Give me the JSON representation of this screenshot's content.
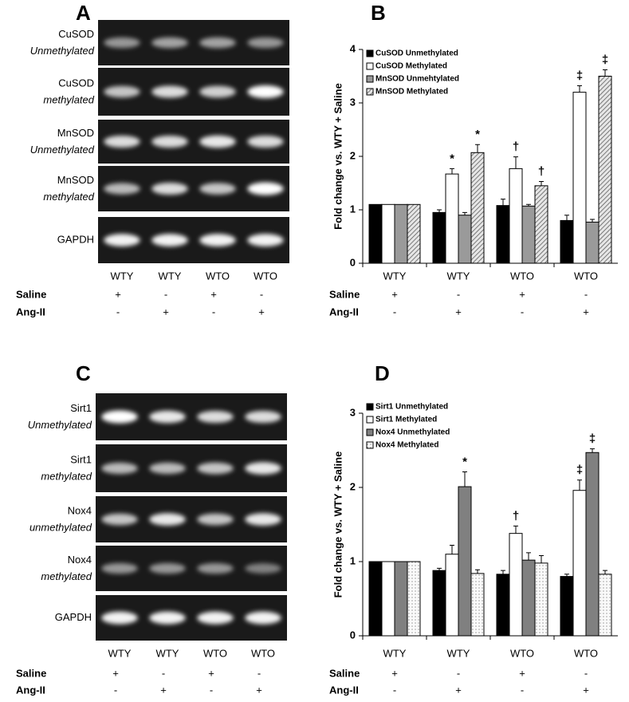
{
  "panels": [
    {
      "label": "A",
      "lanes": [
        "WTY",
        "WTY",
        "WTO",
        "WTO"
      ],
      "rows": [
        {
          "name": "CuSOD",
          "state": "Unmethylated"
        },
        {
          "name": "CuSOD",
          "state": "methylated"
        },
        {
          "name": "MnSOD",
          "state": "Unmethylated"
        },
        {
          "name": "MnSOD",
          "state": "methylated"
        },
        {
          "name": "GAPDH"
        }
      ],
      "conditions": [
        {
          "name": "Saline",
          "values": [
            "+",
            "-",
            "+",
            "-"
          ]
        },
        {
          "name": "Ang-II",
          "values": [
            "-",
            "+",
            "-",
            "+"
          ]
        }
      ]
    },
    {
      "label": "C",
      "lanes": [
        "WTY",
        "WTY",
        "WTO",
        "WTO"
      ],
      "rows": [
        {
          "name": "Sirt1",
          "state": "Unmethylated"
        },
        {
          "name": "Sirt1",
          "state": "methylated"
        },
        {
          "name": "Nox4",
          "state": "unmethylated"
        },
        {
          "name": "Nox4",
          "state": "methylated"
        },
        {
          "name": "GAPDH"
        }
      ],
      "conditions": [
        {
          "name": "Saline",
          "values": [
            "+",
            "-",
            "+",
            "-"
          ]
        },
        {
          "name": "Ang-II",
          "values": [
            "-",
            "+",
            "-",
            "+"
          ]
        }
      ]
    }
  ],
  "chart_data": [
    {
      "type": "bar",
      "panel_label": "B",
      "y_label": "Fold change vs. WTY + Saline",
      "categories": [
        "WTY",
        "WTY",
        "WTO",
        "WTO"
      ],
      "ylim": [
        0,
        4
      ],
      "yticks": [
        0,
        1,
        2,
        3,
        4
      ],
      "conditions": [
        {
          "name": "Saline",
          "values": [
            "+",
            "-",
            "+",
            "-"
          ]
        },
        {
          "name": "Ang-II",
          "values": [
            "-",
            "+",
            "-",
            "+"
          ]
        }
      ],
      "series": [
        {
          "name": "CuSOD Unmethylated",
          "color": "#000000",
          "pattern": "solid",
          "values": [
            1.1,
            0.95,
            1.08,
            0.8
          ],
          "errors": [
            0,
            0.05,
            0.12,
            0.1
          ]
        },
        {
          "name": "CuSOD Methylated",
          "color": "#ffffff",
          "pattern": "solid",
          "values": [
            1.1,
            1.67,
            1.77,
            3.2
          ],
          "errors": [
            0,
            0.1,
            0.22,
            0.12
          ],
          "markers": [
            null,
            "*",
            "†",
            "‡"
          ]
        },
        {
          "name": "MnSOD Unmehtylated",
          "color": "#9a9a9a",
          "pattern": "solid",
          "values": [
            1.1,
            0.9,
            1.07,
            0.77
          ],
          "errors": [
            0,
            0.05,
            0.03,
            0.05
          ]
        },
        {
          "name": "MnSOD Methylated",
          "color": "#cfcfcf",
          "pattern": "hatch",
          "values": [
            1.1,
            2.07,
            1.45,
            3.5
          ],
          "errors": [
            0,
            0.15,
            0.08,
            0.12
          ],
          "markers": [
            null,
            "*",
            "†",
            "‡"
          ]
        }
      ]
    },
    {
      "type": "bar",
      "panel_label": "D",
      "y_label": "Fold change vs. WTY + Saline",
      "categories": [
        "WTY",
        "WTY",
        "WTO",
        "WTO"
      ],
      "ylim": [
        0,
        3
      ],
      "yticks": [
        0,
        1,
        2,
        3
      ],
      "conditions": [
        {
          "name": "Saline",
          "values": [
            "+",
            "-",
            "+",
            "-"
          ]
        },
        {
          "name": "Ang-II",
          "values": [
            "-",
            "+",
            "-",
            "+"
          ]
        }
      ],
      "series": [
        {
          "name": "Sirt1 Unmethylated",
          "color": "#000000",
          "pattern": "solid",
          "values": [
            1,
            0.88,
            0.83,
            0.8
          ],
          "errors": [
            0,
            0.03,
            0.05,
            0.03
          ]
        },
        {
          "name": "Sirt1 Methylated",
          "color": "#ffffff",
          "pattern": "solid",
          "values": [
            1,
            1.1,
            1.38,
            1.96
          ],
          "errors": [
            0,
            0.12,
            0.1,
            0.14
          ],
          "markers": [
            null,
            null,
            "†",
            "‡"
          ]
        },
        {
          "name": "Nox4 Unmethylated",
          "color": "#808080",
          "pattern": "solid",
          "values": [
            1,
            2.01,
            1.02,
            2.47
          ],
          "errors": [
            0,
            0.2,
            0.1,
            0.05
          ],
          "markers": [
            null,
            "*",
            null,
            "‡"
          ]
        },
        {
          "name": "Nox4 Methylated",
          "color": "#f2f2f2",
          "pattern": "dots",
          "values": [
            1,
            0.84,
            0.98,
            0.83
          ],
          "errors": [
            0,
            0.05,
            0.1,
            0.05
          ]
        }
      ]
    }
  ]
}
